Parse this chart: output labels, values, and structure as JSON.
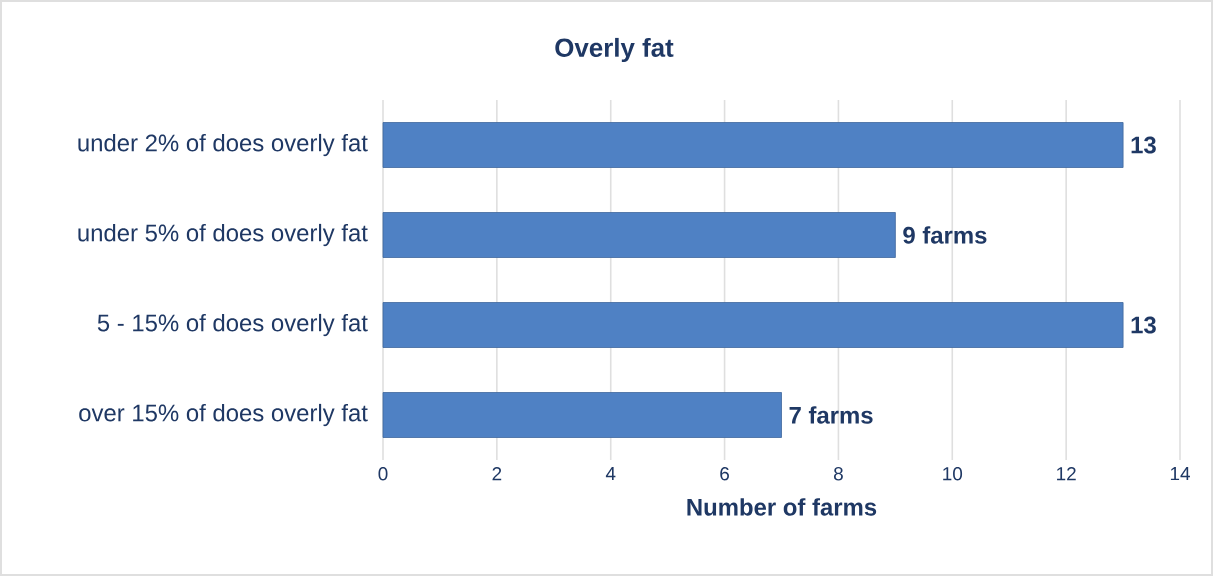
{
  "chart_data": {
    "type": "bar",
    "orientation": "horizontal",
    "title": "Overly fat",
    "xlabel": "Number of farms",
    "categories": [
      "under 2% of does overly fat",
      "under 5% of does overly fat",
      "5 - 15% of does overly fat",
      "over 15% of does overly fat"
    ],
    "values": [
      13,
      9,
      13,
      7
    ],
    "value_labels": [
      "13",
      "9 farms",
      "13",
      "7 farms"
    ],
    "color": "#4f81c4",
    "xlim": [
      0,
      14
    ],
    "xticks": [
      0,
      2,
      4,
      6,
      8,
      10,
      12,
      14
    ],
    "grid": "x"
  }
}
